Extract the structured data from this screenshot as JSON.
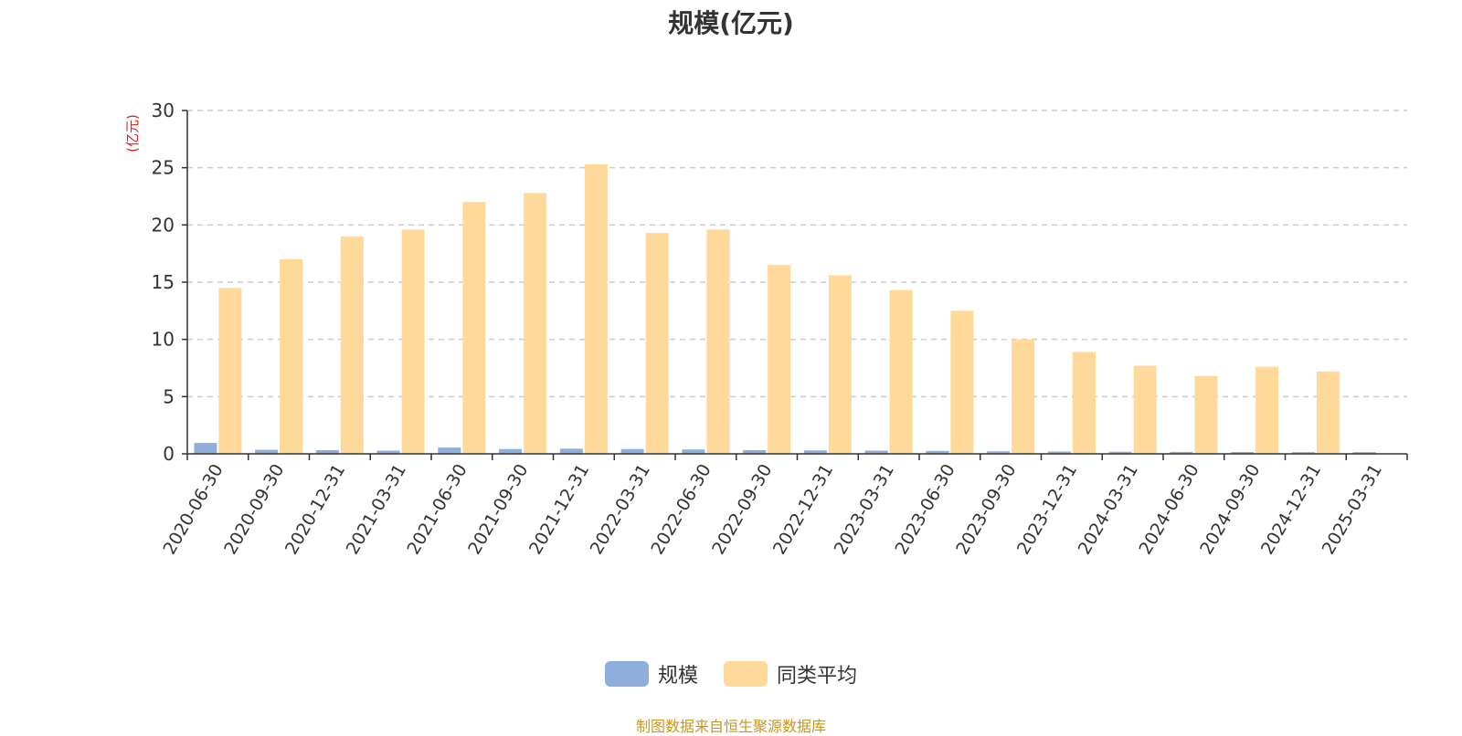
{
  "chart_data": {
    "type": "bar",
    "title": "规模(亿元)",
    "ylabel": "(亿元)",
    "ylim": [
      0,
      30
    ],
    "yticks": [
      0,
      5,
      10,
      15,
      20,
      25,
      30
    ],
    "grid": true,
    "legend_position": "bottom-center",
    "categories": [
      "2020-06-30",
      "2020-09-30",
      "2020-12-31",
      "2021-03-31",
      "2021-06-30",
      "2021-09-30",
      "2021-12-31",
      "2022-03-31",
      "2022-06-30",
      "2022-09-30",
      "2022-12-31",
      "2023-03-31",
      "2023-06-30",
      "2023-09-30",
      "2023-12-31",
      "2024-03-31",
      "2024-06-30",
      "2024-09-30",
      "2024-12-31",
      "2025-03-31"
    ],
    "series": [
      {
        "name": "规模",
        "color": "#8eaedc",
        "values": [
          0.95,
          0.35,
          0.32,
          0.28,
          0.55,
          0.42,
          0.45,
          0.42,
          0.38,
          0.32,
          0.3,
          0.28,
          0.25,
          0.22,
          0.2,
          0.18,
          0.17,
          0.16,
          0.15,
          0.15
        ]
      },
      {
        "name": "同类平均",
        "color": "#ffd99a",
        "values": [
          14.5,
          17.0,
          19.0,
          19.6,
          22.0,
          22.8,
          25.3,
          19.3,
          19.6,
          16.5,
          15.6,
          14.3,
          12.5,
          10.0,
          8.9,
          7.7,
          6.8,
          7.6,
          7.2,
          null
        ]
      }
    ]
  },
  "source_note": "制图数据来自恒生聚源数据库",
  "colors": {
    "axis": "#333333",
    "grid": "#cccccc",
    "unit": "#e02020",
    "source": "#c8961e"
  }
}
